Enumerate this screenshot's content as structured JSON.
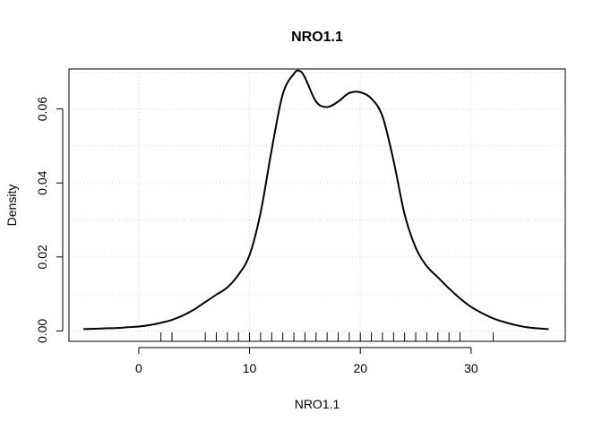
{
  "chart_data": {
    "type": "line",
    "title": "NRO1.1",
    "xlabel": "NRO1.1",
    "ylabel": "Density",
    "xlim": [
      -6.3,
      38.5
    ],
    "ylim": [
      -0.0028,
      0.0708
    ],
    "x_ticks": [
      0,
      10,
      20,
      30
    ],
    "x_tick_labels": [
      "0",
      "10",
      "20",
      "30"
    ],
    "y_ticks": [
      0,
      0.02,
      0.04,
      0.06
    ],
    "y_tick_labels": [
      "0.00",
      "0.02",
      "0.04",
      "0.06"
    ],
    "grid": true,
    "grid_x": [
      0,
      10,
      20,
      30
    ],
    "grid_y": [
      0,
      0.01,
      0.02,
      0.03,
      0.04,
      0.05,
      0.06,
      0.07
    ],
    "series": [
      {
        "x": [
          -5,
          -4,
          -3,
          -2,
          -1,
          0,
          1,
          2,
          3,
          4,
          5,
          6,
          7,
          8,
          9,
          10,
          11,
          12,
          13,
          14,
          14.5,
          15,
          16,
          17,
          18,
          19,
          20,
          21,
          22,
          23,
          24,
          25,
          26,
          27,
          28,
          29,
          30,
          31,
          32,
          33,
          34,
          35,
          36,
          37
        ],
        "y": [
          0.0005,
          0.0006,
          0.0007,
          0.0008,
          0.001,
          0.0012,
          0.0016,
          0.0022,
          0.003,
          0.0042,
          0.0058,
          0.0078,
          0.0098,
          0.0118,
          0.0152,
          0.0205,
          0.032,
          0.049,
          0.064,
          0.0695,
          0.0703,
          0.0685,
          0.062,
          0.0605,
          0.062,
          0.0643,
          0.0645,
          0.0628,
          0.058,
          0.046,
          0.0315,
          0.0225,
          0.0175,
          0.0145,
          0.0115,
          0.0088,
          0.0065,
          0.0048,
          0.0034,
          0.0024,
          0.0016,
          0.001,
          0.0007,
          0.0005
        ]
      }
    ],
    "rug": [
      2,
      3,
      6,
      7,
      8,
      9,
      10,
      11,
      12,
      13,
      14,
      15,
      16,
      17,
      18,
      19,
      20,
      21,
      22,
      23,
      24,
      25,
      26,
      27,
      28,
      29,
      32
    ]
  }
}
